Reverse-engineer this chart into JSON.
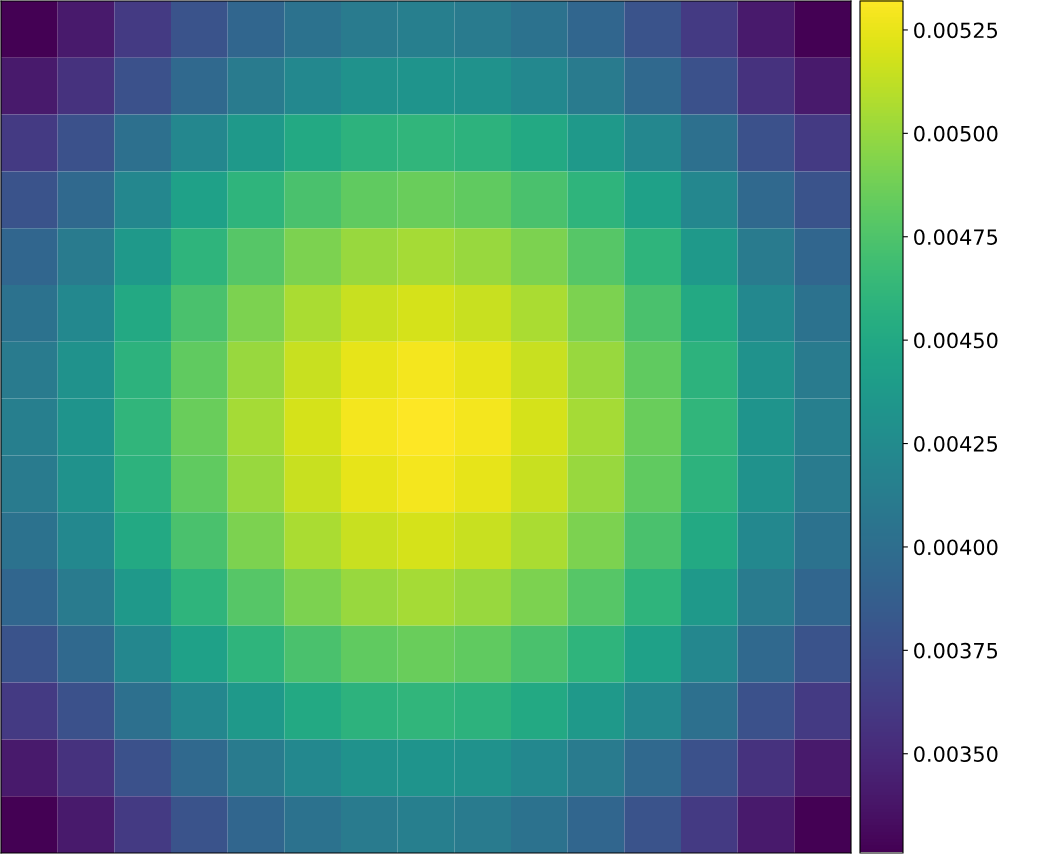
{
  "chart_data": {
    "type": "heatmap",
    "categories": [
      null,
      null,
      null,
      null,
      null,
      null,
      null,
      null,
      null,
      null,
      null,
      null,
      null,
      null,
      null
    ],
    "y_categories": [
      null,
      null,
      null,
      null,
      null,
      null,
      null,
      null,
      null,
      null,
      null,
      null,
      null,
      null,
      null
    ],
    "cells": [
      [
        0.00326,
        0.0034,
        0.00361,
        0.00379,
        0.00393,
        0.00404,
        0.00411,
        0.00414,
        0.00411,
        0.00404,
        0.00393,
        0.00379,
        0.00361,
        0.0034,
        0.00326
      ],
      [
        0.0034,
        0.00355,
        0.00377,
        0.00396,
        0.00411,
        0.00422,
        0.0043,
        0.00433,
        0.0043,
        0.00422,
        0.00411,
        0.00396,
        0.00377,
        0.00355,
        0.0034
      ],
      [
        0.00361,
        0.00377,
        0.00401,
        0.00421,
        0.00437,
        0.0045,
        0.00458,
        0.00461,
        0.00458,
        0.0045,
        0.00437,
        0.00421,
        0.00401,
        0.00377,
        0.00361
      ],
      [
        0.00379,
        0.00396,
        0.00421,
        0.00443,
        0.0046,
        0.00473,
        0.00482,
        0.00485,
        0.00482,
        0.00473,
        0.0046,
        0.00443,
        0.00421,
        0.00396,
        0.00379
      ],
      [
        0.00393,
        0.00411,
        0.00437,
        0.0046,
        0.00478,
        0.00491,
        0.005,
        0.00504,
        0.005,
        0.00491,
        0.00478,
        0.0046,
        0.00437,
        0.00411,
        0.00393
      ],
      [
        0.00404,
        0.00422,
        0.0045,
        0.00473,
        0.00491,
        0.00506,
        0.00515,
        0.00519,
        0.00515,
        0.00506,
        0.00491,
        0.00473,
        0.0045,
        0.00422,
        0.00404
      ],
      [
        0.00411,
        0.0043,
        0.00458,
        0.00482,
        0.005,
        0.00515,
        0.00524,
        0.00528,
        0.00524,
        0.00515,
        0.005,
        0.00482,
        0.00458,
        0.0043,
        0.00411
      ],
      [
        0.00414,
        0.00433,
        0.00461,
        0.00485,
        0.00504,
        0.00519,
        0.00528,
        0.00532,
        0.00528,
        0.00519,
        0.00504,
        0.00485,
        0.00461,
        0.00433,
        0.00414
      ],
      [
        0.00411,
        0.0043,
        0.00458,
        0.00482,
        0.005,
        0.00515,
        0.00524,
        0.00528,
        0.00524,
        0.00515,
        0.005,
        0.00482,
        0.00458,
        0.0043,
        0.00411
      ],
      [
        0.00404,
        0.00422,
        0.0045,
        0.00473,
        0.00491,
        0.00506,
        0.00515,
        0.00519,
        0.00515,
        0.00506,
        0.00491,
        0.00473,
        0.0045,
        0.00422,
        0.00404
      ],
      [
        0.00393,
        0.00411,
        0.00437,
        0.0046,
        0.00478,
        0.00491,
        0.005,
        0.00504,
        0.005,
        0.00491,
        0.00478,
        0.0046,
        0.00437,
        0.00411,
        0.00393
      ],
      [
        0.00379,
        0.00396,
        0.00421,
        0.00443,
        0.0046,
        0.00473,
        0.00482,
        0.00485,
        0.00482,
        0.00473,
        0.0046,
        0.00443,
        0.00421,
        0.00396,
        0.00379
      ],
      [
        0.00361,
        0.00377,
        0.00401,
        0.00421,
        0.00437,
        0.0045,
        0.00458,
        0.00461,
        0.00458,
        0.0045,
        0.00437,
        0.00421,
        0.00401,
        0.00377,
        0.00361
      ],
      [
        0.0034,
        0.00355,
        0.00377,
        0.00396,
        0.00411,
        0.00422,
        0.0043,
        0.00433,
        0.0043,
        0.00422,
        0.00411,
        0.00396,
        0.00377,
        0.00355,
        0.0034
      ],
      [
        0.00326,
        0.0034,
        0.00361,
        0.00379,
        0.00393,
        0.00404,
        0.00411,
        0.00414,
        0.00411,
        0.00404,
        0.00393,
        0.00379,
        0.00361,
        0.0034,
        0.00326
      ]
    ],
    "clim": [
      0.00326,
      0.00532
    ],
    "cticks": [
      {
        "value": 0.0035,
        "label": "0.00350"
      },
      {
        "value": 0.00375,
        "label": "0.00375"
      },
      {
        "value": 0.004,
        "label": "0.00400"
      },
      {
        "value": 0.00425,
        "label": "0.00425"
      },
      {
        "value": 0.0045,
        "label": "0.00450"
      },
      {
        "value": 0.00475,
        "label": "0.00475"
      },
      {
        "value": 0.005,
        "label": "0.00500"
      },
      {
        "value": 0.00525,
        "label": "0.00525"
      }
    ],
    "tick_labels": false
  }
}
